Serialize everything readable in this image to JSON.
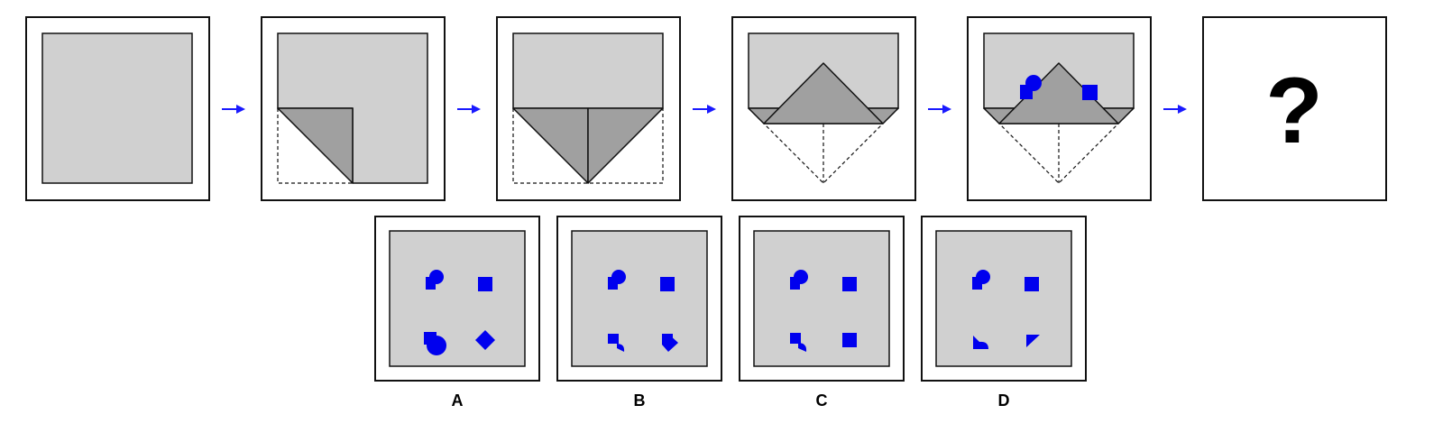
{
  "question_mark": "?",
  "options": [
    {
      "label": "A"
    },
    {
      "label": "B"
    },
    {
      "label": "C"
    },
    {
      "label": "D"
    }
  ],
  "colors": {
    "paper": "#d0d0d0",
    "flap": "#a0a0a0",
    "hole": "#0000ee",
    "arrow": "#1a1aff",
    "frame": "#111111"
  }
}
